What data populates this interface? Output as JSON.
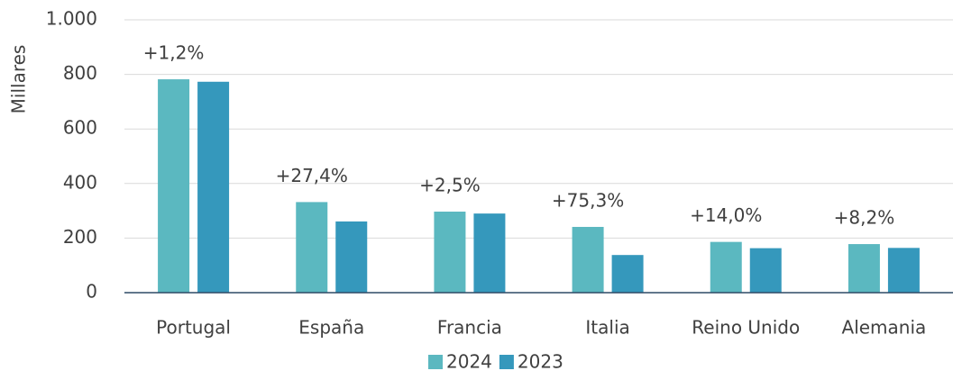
{
  "chart_data": {
    "type": "bar",
    "y_axis_label": "Millares",
    "categories": [
      "Portugal",
      "España",
      "Francia",
      "Italia",
      "Reino Unido",
      "Alemania"
    ],
    "series": [
      {
        "name": "2024",
        "color": "#5bb8c0",
        "values": [
          782,
          332,
          297,
          241,
          186,
          178
        ]
      },
      {
        "name": "2023",
        "color": "#3598bc",
        "values": [
          773,
          261,
          290,
          138,
          163,
          164
        ]
      }
    ],
    "annotations": [
      "+1,2%",
      "+27,4%",
      "+2,5%",
      "+75,3%",
      "+14,0%",
      "+8,2%"
    ],
    "ylim": [
      0,
      1000
    ],
    "yticks": [
      0,
      200,
      400,
      600,
      800,
      {
        "value": 1000,
        "label": "1.000"
      }
    ],
    "grid": true,
    "legend": "bottom"
  }
}
